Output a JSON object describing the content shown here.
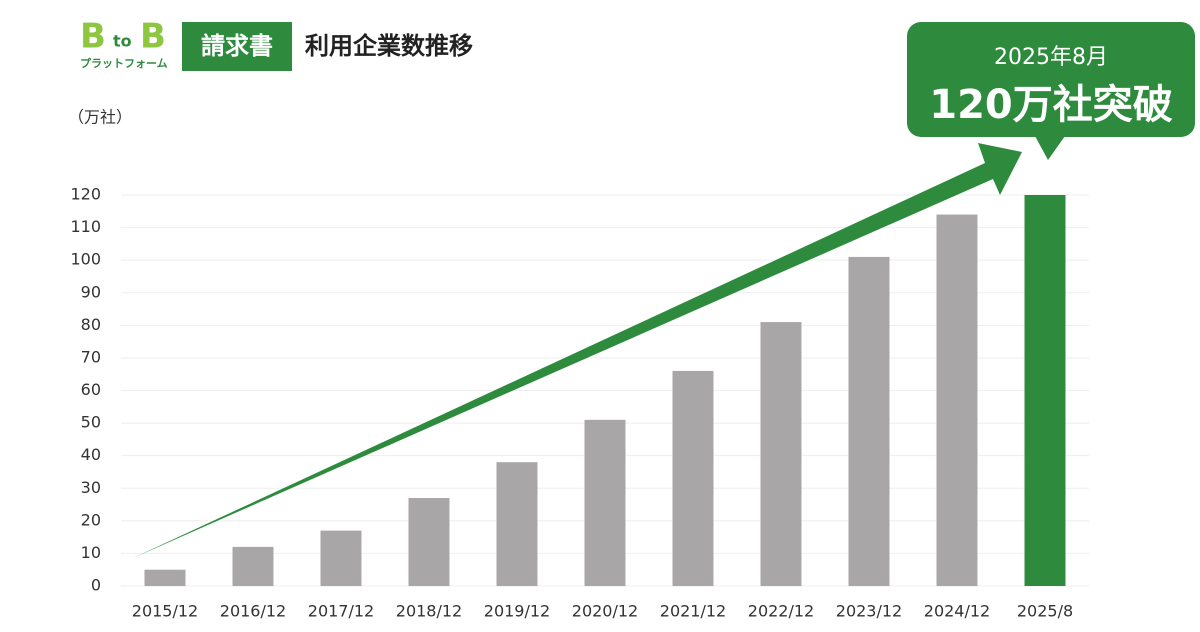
{
  "logo": {
    "b1": "B",
    "to": "to",
    "b2": "B",
    "sub": "プラットフォーム",
    "product": "請求書"
  },
  "chart_data": {
    "type": "bar",
    "title": "利用企業数推移",
    "y_label": "（万社）",
    "annotation": {
      "date": "2025年8月",
      "headline": "120万社突破"
    },
    "categories": [
      "2015/12",
      "2016/12",
      "2017/12",
      "2018/12",
      "2019/12",
      "2020/12",
      "2021/12",
      "2022/12",
      "2023/12",
      "2024/12",
      "2025/8"
    ],
    "values": [
      5,
      12,
      17,
      27,
      38,
      51,
      66,
      81,
      101,
      114,
      120
    ],
    "colors": [
      "#a9a6a7",
      "#a9a6a7",
      "#a9a6a7",
      "#a9a6a7",
      "#a9a6a7",
      "#a9a6a7",
      "#a9a6a7",
      "#a9a6a7",
      "#a9a6a7",
      "#a9a6a7",
      "#2e8b3e"
    ],
    "ylim": [
      0,
      120
    ],
    "yticks": [
      0,
      10,
      20,
      30,
      40,
      50,
      60,
      70,
      80,
      90,
      100,
      110,
      120
    ],
    "grid": true
  }
}
